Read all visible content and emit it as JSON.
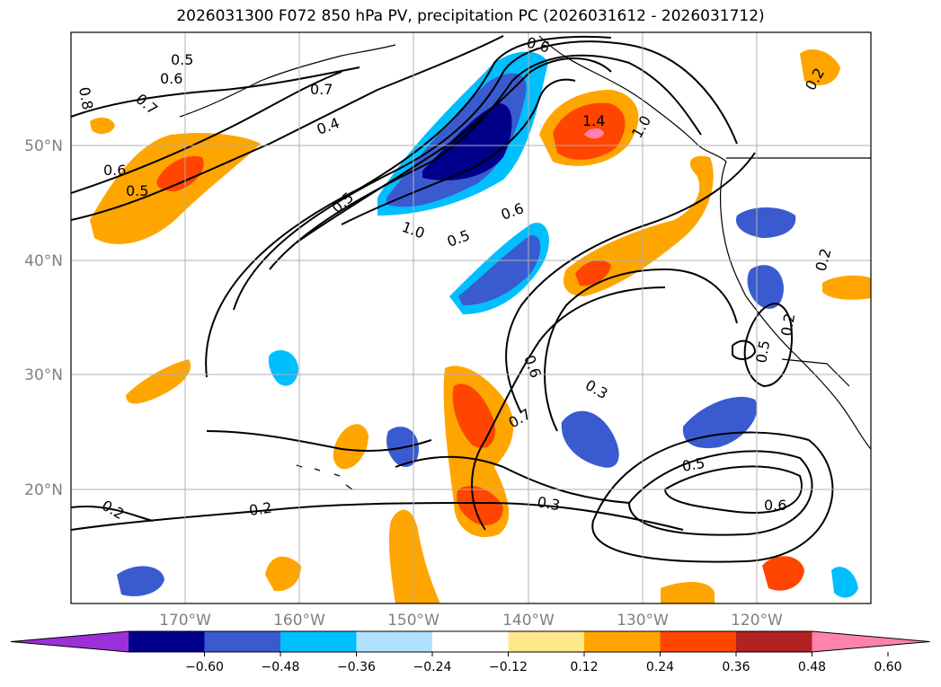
{
  "title": "2026031300 F072 850 hPa PV, precipitation PC (2026031612 - 2026031712)",
  "map": {
    "lon_range": [
      -180,
      -110
    ],
    "lat_range": [
      10,
      60
    ],
    "lat_ticks": [
      {
        "value": 50,
        "label": "50°N"
      },
      {
        "value": 40,
        "label": "40°N"
      },
      {
        "value": 30,
        "label": "30°N"
      },
      {
        "value": 20,
        "label": "20°N"
      }
    ],
    "lon_ticks": [
      {
        "value": -170,
        "label": "170°W"
      },
      {
        "value": -160,
        "label": "160°W"
      },
      {
        "value": -150,
        "label": "150°W"
      },
      {
        "value": -140,
        "label": "140°W"
      },
      {
        "value": -130,
        "label": "130°W"
      },
      {
        "value": -120,
        "label": "120°W"
      }
    ],
    "contour_labels": [
      "0.5",
      "0.6",
      "0.7",
      "0.8",
      "0.4",
      "0.5",
      "0.6",
      "0.7",
      "1.0",
      "0.5",
      "0.6",
      "0.2",
      "0.2",
      "0.6",
      "0.3",
      "0.7",
      "0.3",
      "0.5",
      "0.6",
      "0.2",
      "0.5",
      "0.2",
      "0.2",
      "1.0",
      "1.4",
      "0.6",
      "0.5"
    ]
  },
  "colorbar": {
    "colors": [
      "#9b30d8",
      "#00008b",
      "#3a5bd0",
      "#00bfff",
      "#b0e2ff",
      "#ffffff",
      "#ffe88a",
      "#ffa500",
      "#ff4500",
      "#b22222",
      "#ff82ab"
    ],
    "tick_labels": [
      "−0.60",
      "−0.48",
      "−0.36",
      "−0.24",
      "−0.12",
      "0.12",
      "0.24",
      "0.36",
      "0.48",
      "0.60"
    ]
  }
}
